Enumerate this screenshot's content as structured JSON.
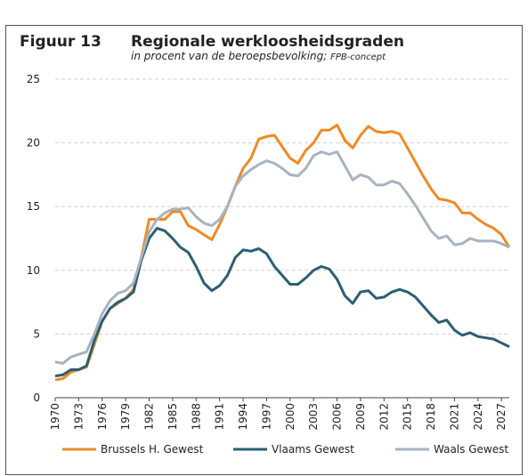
{
  "chart_data": {
    "type": "line",
    "title_number": "Figuur 13",
    "title": "Regionale werkloosheidsgraden",
    "subtitle": "in procent van de beroepsbevolking;",
    "subtitle_note": "FPB-concept",
    "x": [
      1970,
      1971,
      1972,
      1973,
      1974,
      1975,
      1976,
      1977,
      1978,
      1979,
      1980,
      1981,
      1982,
      1983,
      1984,
      1985,
      1986,
      1987,
      1988,
      1989,
      1990,
      1991,
      1992,
      1993,
      1994,
      1995,
      1996,
      1997,
      1998,
      1999,
      2000,
      2001,
      2002,
      2003,
      2004,
      2005,
      2006,
      2007,
      2008,
      2009,
      2010,
      2011,
      2012,
      2013,
      2014,
      2015,
      2016,
      2017,
      2018,
      2019,
      2020,
      2021,
      2022,
      2023,
      2024,
      2025,
      2026,
      2027,
      2028
    ],
    "series": [
      {
        "name": "Brussels H. Gewest",
        "color": "#f08a24",
        "values": [
          1.4,
          1.5,
          2.0,
          2.2,
          2.4,
          4.2,
          6.0,
          7.0,
          7.4,
          7.8,
          8.5,
          11.0,
          14.0,
          14.0,
          14.0,
          14.6,
          14.6,
          13.5,
          13.2,
          12.8,
          12.4,
          13.6,
          15.0,
          16.6,
          18.0,
          18.8,
          20.3,
          20.5,
          20.6,
          19.7,
          18.8,
          18.4,
          19.4,
          20.0,
          21.0,
          21.0,
          21.4,
          20.2,
          19.6,
          20.6,
          21.3,
          20.9,
          20.8,
          20.9,
          20.7,
          19.6,
          18.5,
          17.4,
          16.4,
          15.6,
          15.5,
          15.3,
          14.5,
          14.5,
          14.0,
          13.6,
          13.3,
          12.8,
          11.8
        ]
      },
      {
        "name": "Vlaams Gewest",
        "color": "#2b5f73",
        "values": [
          1.7,
          1.8,
          2.2,
          2.2,
          2.5,
          4.5,
          6.0,
          7.0,
          7.5,
          7.8,
          8.3,
          10.8,
          12.5,
          13.3,
          13.1,
          12.5,
          11.8,
          11.4,
          10.3,
          9.0,
          8.4,
          8.8,
          9.6,
          11.0,
          11.6,
          11.5,
          11.7,
          11.3,
          10.3,
          9.6,
          8.9,
          8.9,
          9.4,
          10.0,
          10.3,
          10.1,
          9.3,
          8.0,
          7.4,
          8.3,
          8.4,
          7.8,
          7.9,
          8.3,
          8.5,
          8.3,
          7.9,
          7.2,
          6.5,
          5.9,
          6.1,
          5.3,
          4.9,
          5.1,
          4.8,
          4.7,
          4.6,
          4.3,
          4.0
        ]
      },
      {
        "name": "Waals Gewest",
        "color": "#a9b3bf",
        "values": [
          2.8,
          2.7,
          3.2,
          3.4,
          3.6,
          5.0,
          6.6,
          7.6,
          8.2,
          8.4,
          9.0,
          11.0,
          13.0,
          14.0,
          14.5,
          14.8,
          14.8,
          14.9,
          14.2,
          13.7,
          13.5,
          14.0,
          15.0,
          16.6,
          17.4,
          17.9,
          18.3,
          18.6,
          18.4,
          18.0,
          17.5,
          17.4,
          18.0,
          19.0,
          19.3,
          19.1,
          19.3,
          18.2,
          17.1,
          17.5,
          17.3,
          16.7,
          16.7,
          17.0,
          16.8,
          16.0,
          15.1,
          14.1,
          13.1,
          12.5,
          12.7,
          12.0,
          12.1,
          12.5,
          12.3,
          12.3,
          12.3,
          12.1,
          11.8
        ]
      }
    ],
    "xlim": [
      1970,
      2028
    ],
    "xticks": [
      1970,
      1973,
      1976,
      1979,
      1982,
      1985,
      1988,
      1991,
      1994,
      1997,
      2000,
      2003,
      2006,
      2009,
      2012,
      2015,
      2018,
      2021,
      2024,
      2027
    ],
    "ylim": [
      0,
      25
    ],
    "yticks": [
      0,
      5,
      10,
      15,
      20,
      25
    ],
    "grid": true,
    "legend": "bottom"
  }
}
